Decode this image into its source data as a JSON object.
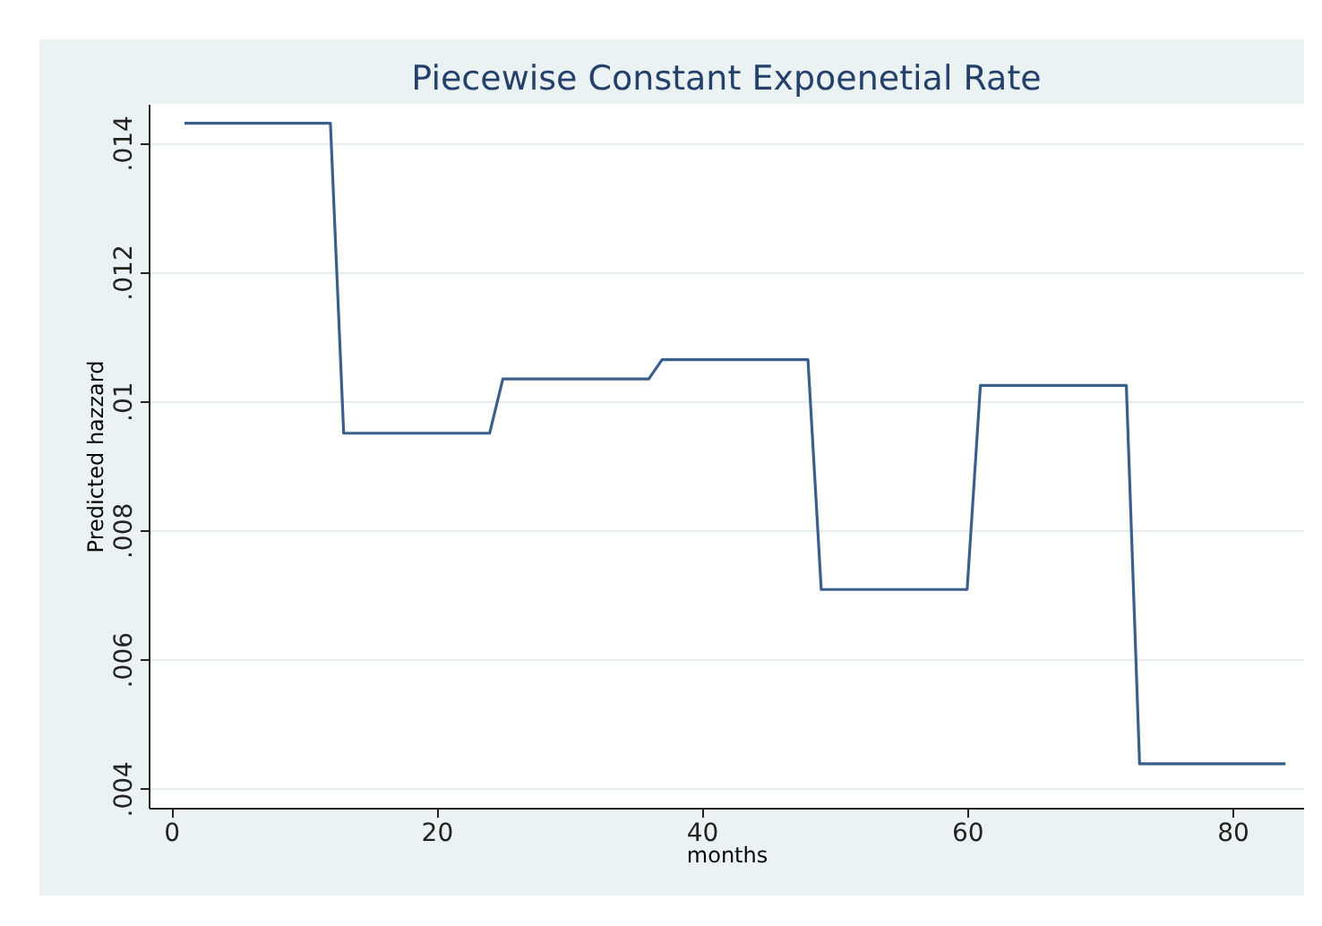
{
  "chart_data": {
    "type": "line",
    "title": "Piecewise Constant Expoenetial Rate",
    "xlabel": "months",
    "ylabel": "Predicted hazzard",
    "x": [
      1,
      12,
      13,
      24,
      25,
      36,
      37,
      48,
      49,
      60,
      61,
      72,
      73,
      84
    ],
    "series": [
      {
        "color": "#3a5f8a",
        "values": [
          0.0143,
          0.0143,
          0.0095,
          0.0095,
          0.01034,
          0.01034,
          0.01064,
          0.01064,
          0.00708,
          0.00708,
          0.01024,
          0.01024,
          0.00438,
          0.00438
        ]
      }
    ],
    "xlim": [
      -1.7,
      85.4
    ],
    "xticks": [
      0,
      20,
      40,
      60,
      80
    ],
    "ylim": [
      0.0037,
      0.0146
    ],
    "yticks": [
      {
        "value": 0.004,
        "label": ".004"
      },
      {
        "value": 0.006,
        "label": ".006"
      },
      {
        "value": 0.008,
        "label": ".008"
      },
      {
        "value": 0.01,
        "label": ".01"
      },
      {
        "value": 0.012,
        "label": ".012"
      },
      {
        "value": 0.014,
        "label": ".014"
      }
    ],
    "grid": "y",
    "legend": false,
    "marker": "none",
    "line_style": "solid"
  }
}
